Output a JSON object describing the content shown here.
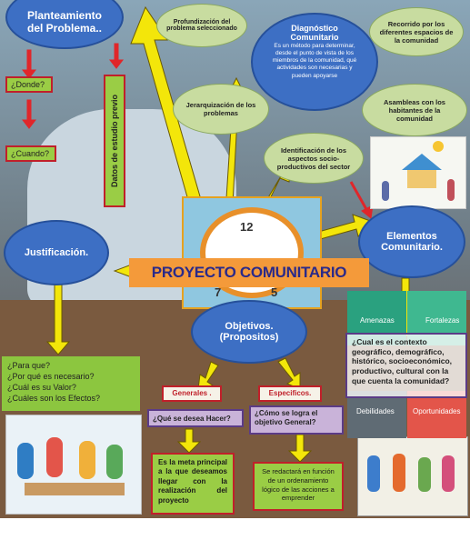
{
  "title": "PROYECTO COMUNITARIO",
  "planteamiento": "Planteamiento del Problema..",
  "donde": "¿Donde?",
  "cuando": "¿Cuando?",
  "datos": "Datos de estudio previo",
  "profundizacion": "Profundización del problema seleccionado",
  "diagnostico_title": "Diagnóstico Comunitario",
  "diagnostico_text": "Es un método para determinar, desde el punto de vista de los miembros de la comunidad, qué actividades son necesarias y pueden apoyarse",
  "recorrido": "Recorrido por los diferentes espacios de la comunidad",
  "jerarquizacion": "Jerarquización de los problemas",
  "asambleas": "Asambleas con los habitantes de la comunidad",
  "identificacion": "Identificación de los aspectos socio-productivos del sector",
  "justificacion": "Justificación.",
  "justificacion_questions": "¿Para que?\n¿Por qué es necesario?\n¿Cuál es su Valor?\n¿Cuáles son los Efectos?",
  "elementos": "Elementos Comunitario.",
  "elementos_text": "¿Cual es el contexto geográfico, demográfico, histórico, socioeconómico, productivo, cultural con la que cuenta la comunidad?",
  "objetivos": "Objetivos. (Propositos)",
  "generales": "Generales .",
  "especificos": "Especificos.",
  "que_hacer": "¿Qué se desea Hacer?",
  "como_lograr": "¿Cómo se logra el objetivo General?",
  "meta": "Es la meta principal a la que deseamos llegar con la realización del proyecto",
  "redactara": "Se redactará en función de un ordenamiento lógico de las acciones a emprender",
  "foda": [
    "Amenazas",
    "Fortalezas",
    "Debilidades",
    "Oportunidades"
  ],
  "clock_numbers": [
    "12",
    "7",
    "5"
  ],
  "colors": {
    "cloud_blue": "#3d6fc4",
    "cloud_green": "#c8dca0",
    "box_green": "#9acd45",
    "box_border_red": "#c0202a",
    "arrow_yellow": "#f3e60a",
    "arrow_red": "#e0262a",
    "banner_orange": "#f49a3a",
    "title_text": "#2a2a8a"
  },
  "icons": [
    "house-illustration-icon",
    "clock-icon",
    "people-illustration-icon",
    "foda-grid-icon"
  ]
}
